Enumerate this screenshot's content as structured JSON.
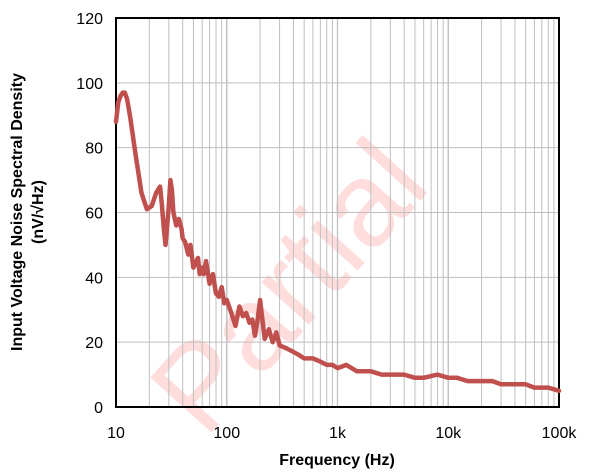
{
  "watermark_text": "Partial",
  "colors": {
    "series": "#c0504d",
    "grid": "#bfbfbf",
    "frame": "#000000",
    "watermark": "#ff0000"
  },
  "chart_data": {
    "type": "line",
    "x_scale": "log",
    "xlabel": "Frequency (Hz)",
    "ylabel_line1": "Input Voltage Noise Spectral Density",
    "ylabel_line2": "(nV/√Hz)",
    "xlim": [
      10,
      100000
    ],
    "ylim": [
      0,
      120
    ],
    "x_ticks": [
      10,
      100,
      1000,
      10000,
      100000
    ],
    "x_tick_labels": [
      "10",
      "100",
      "1k",
      "10k",
      "100k"
    ],
    "y_ticks": [
      0,
      20,
      40,
      60,
      80,
      100,
      120
    ],
    "y_tick_labels": [
      "0",
      "20",
      "40",
      "60",
      "80",
      "100",
      "120"
    ],
    "grid": true,
    "legend": "none",
    "series": [
      {
        "x": [
          10,
          10.5,
          11,
          11.5,
          12,
          12.6,
          13.5,
          15,
          17,
          19,
          21,
          23,
          25,
          26,
          27,
          28,
          29,
          30,
          31,
          32,
          33,
          35,
          37,
          39,
          40,
          42,
          45,
          47,
          50,
          52,
          55,
          57,
          60,
          62,
          65,
          70,
          75,
          80,
          85,
          90,
          95,
          100,
          110,
          120,
          130,
          140,
          150,
          160,
          170,
          180,
          190,
          200,
          220,
          240,
          260,
          280,
          300,
          350,
          400,
          450,
          500,
          600,
          700,
          800,
          900,
          1000,
          1200,
          1500,
          2000,
          2500,
          3000,
          4000,
          5000,
          6000,
          8000,
          10000,
          12000,
          15000,
          20000,
          25000,
          30000,
          40000,
          50000,
          60000,
          80000,
          100000
        ],
        "y": [
          88,
          94,
          96,
          97,
          97,
          95,
          89,
          78,
          66,
          61,
          62,
          66,
          68,
          62,
          55,
          50,
          56,
          62,
          70,
          67,
          60,
          56,
          58,
          55,
          52,
          51,
          47,
          50,
          43,
          44,
          46,
          41,
          43,
          41,
          45,
          38,
          41,
          35,
          34,
          37,
          32,
          33,
          29,
          25,
          31,
          28,
          29,
          26,
          27,
          22,
          27,
          33,
          21,
          24,
          20,
          23,
          19,
          18,
          17,
          16,
          15,
          15,
          14,
          13,
          13,
          12,
          13,
          11,
          11,
          10,
          10,
          10,
          9,
          9,
          10,
          9,
          9,
          8,
          8,
          8,
          7,
          7,
          7,
          6,
          6,
          5
        ]
      }
    ]
  }
}
